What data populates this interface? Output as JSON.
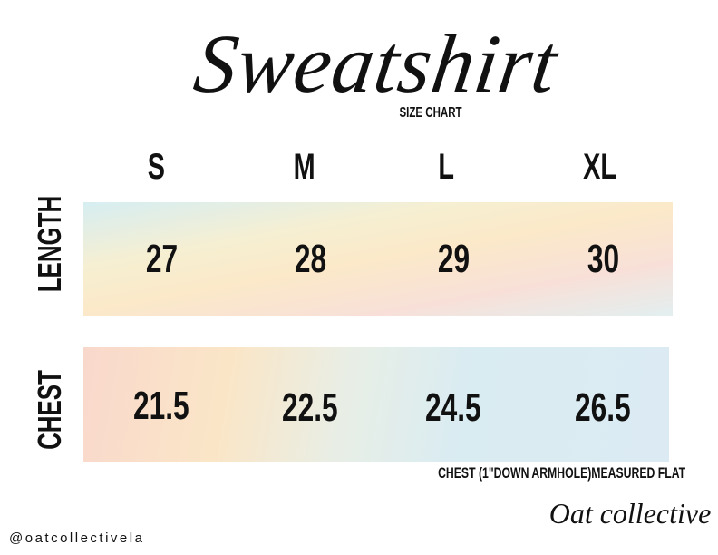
{
  "title": "Sweatshirt",
  "subtitle": "SIZE CHART",
  "sizes": [
    "S",
    "M",
    "L",
    "XL"
  ],
  "rows": [
    {
      "label": "LENGTH",
      "values": [
        "27",
        "28",
        "29",
        "30"
      ]
    },
    {
      "label": "CHEST",
      "values": [
        "21.5",
        "22.5",
        "24.5",
        "26.5"
      ]
    }
  ],
  "note": "CHEST (1\"DOWN ARMHOLE)MEASURED FLAT",
  "handle": "@oatcollectivela",
  "logo": "Oat collective"
}
